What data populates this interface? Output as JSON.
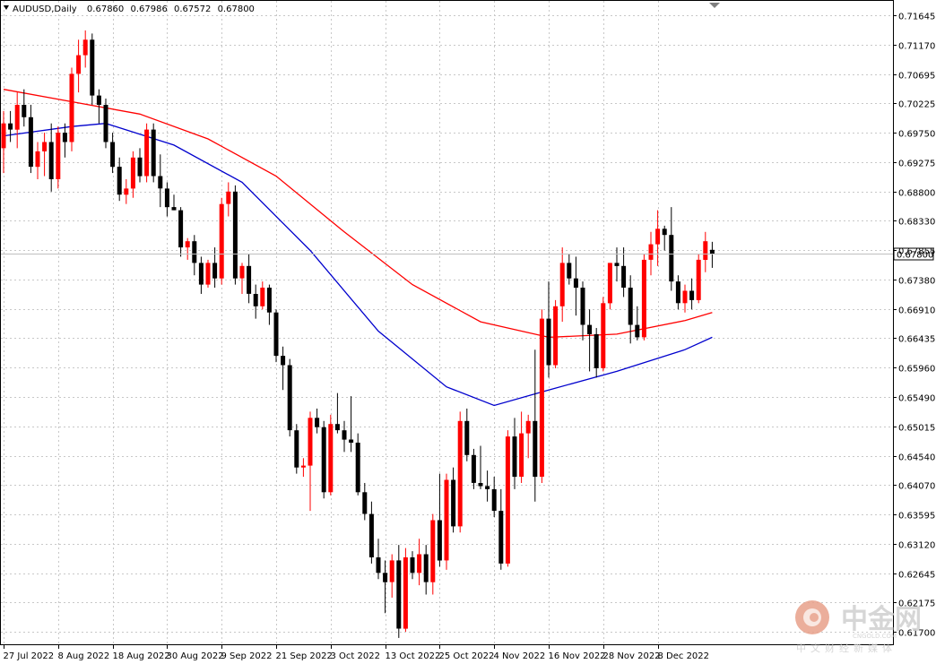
{
  "chart_data": {
    "type": "candlestick",
    "symbol": "AUDUSD",
    "timeframe": "Daily",
    "ohlc_header": [
      "0.67860",
      "0.67986",
      "0.67572",
      "0.67800"
    ],
    "current_price": "0.67800",
    "ylim": [
      0.6145,
      0.7195
    ],
    "y_ticks": [
      "0.71645",
      "0.71170",
      "0.70695",
      "0.70225",
      "0.69750",
      "0.69275",
      "0.68800",
      "0.68330",
      "0.67855",
      "0.67380",
      "0.66910",
      "0.66435",
      "0.65960",
      "0.65490",
      "0.65015",
      "0.64540",
      "0.64070",
      "0.63595",
      "0.63120",
      "0.62645",
      "0.62175",
      "0.61700"
    ],
    "x_ticks": [
      {
        "label": "27 Jul 2022",
        "index": 0
      },
      {
        "label": "8 Aug 2022",
        "index": 8
      },
      {
        "label": "18 Aug 2022",
        "index": 16
      },
      {
        "label": "30 Aug 2022",
        "index": 24
      },
      {
        "label": "9 Sep 2022",
        "index": 32
      },
      {
        "label": "21 Sep 2022",
        "index": 40
      },
      {
        "label": "3 Oct 2022",
        "index": 48
      },
      {
        "label": "13 Oct 2022",
        "index": 56
      },
      {
        "label": "25 Oct 2022",
        "index": 64
      },
      {
        "label": "4 Nov 2022",
        "index": 72
      },
      {
        "label": "16 Nov 2022",
        "index": 80
      },
      {
        "label": "28 Nov 2022",
        "index": 88
      },
      {
        "label": "8 Dec 2022",
        "index": 96
      }
    ],
    "candles": [
      [
        0.695,
        0.701,
        0.691,
        0.699
      ],
      [
        0.699,
        0.701,
        0.696,
        0.698
      ],
      [
        0.698,
        0.704,
        0.695,
        0.702
      ],
      [
        0.702,
        0.7045,
        0.6985,
        0.7
      ],
      [
        0.7,
        0.702,
        0.691,
        0.692
      ],
      [
        0.692,
        0.696,
        0.69,
        0.6945
      ],
      [
        0.6945,
        0.6975,
        0.6905,
        0.696
      ],
      [
        0.696,
        0.699,
        0.688,
        0.69
      ],
      [
        0.69,
        0.6985,
        0.6885,
        0.6975
      ],
      [
        0.6975,
        0.699,
        0.6935,
        0.696
      ],
      [
        0.696,
        0.708,
        0.6945,
        0.707
      ],
      [
        0.707,
        0.7125,
        0.704,
        0.71
      ],
      [
        0.71,
        0.714,
        0.708,
        0.7125
      ],
      [
        0.7125,
        0.7135,
        0.702,
        0.7035
      ],
      [
        0.7035,
        0.7045,
        0.699,
        0.702
      ],
      [
        0.702,
        0.703,
        0.695,
        0.696
      ],
      [
        0.696,
        0.6975,
        0.691,
        0.692
      ],
      [
        0.692,
        0.6935,
        0.6865,
        0.6875
      ],
      [
        0.6875,
        0.69,
        0.686,
        0.6885
      ],
      [
        0.6885,
        0.6945,
        0.687,
        0.6935
      ],
      [
        0.6935,
        0.695,
        0.6895,
        0.6905
      ],
      [
        0.6905,
        0.699,
        0.6895,
        0.698
      ],
      [
        0.698,
        0.699,
        0.6895,
        0.6905
      ],
      [
        0.6905,
        0.694,
        0.6855,
        0.6885
      ],
      [
        0.6885,
        0.6895,
        0.684,
        0.6855
      ],
      [
        0.6855,
        0.6875,
        0.685,
        0.685
      ],
      [
        0.685,
        0.6855,
        0.6775,
        0.679
      ],
      [
        0.679,
        0.6805,
        0.677,
        0.68
      ],
      [
        0.68,
        0.681,
        0.6745,
        0.6765
      ],
      [
        0.6765,
        0.6775,
        0.6715,
        0.673
      ],
      [
        0.673,
        0.677,
        0.6725,
        0.6765
      ],
      [
        0.6765,
        0.679,
        0.6725,
        0.674
      ],
      [
        0.674,
        0.687,
        0.673,
        0.686
      ],
      [
        0.686,
        0.6895,
        0.684,
        0.688
      ],
      [
        0.688,
        0.689,
        0.673,
        0.674
      ],
      [
        0.674,
        0.6765,
        0.6715,
        0.676
      ],
      [
        0.676,
        0.678,
        0.67,
        0.6715
      ],
      [
        0.6715,
        0.673,
        0.6675,
        0.6695
      ],
      [
        0.6695,
        0.6735,
        0.669,
        0.6725
      ],
      [
        0.6725,
        0.673,
        0.6665,
        0.6685
      ],
      [
        0.6685,
        0.669,
        0.6605,
        0.6615
      ],
      [
        0.6615,
        0.663,
        0.656,
        0.66
      ],
      [
        0.66,
        0.661,
        0.6485,
        0.6495
      ],
      [
        0.6495,
        0.6505,
        0.6425,
        0.6435
      ],
      [
        0.6435,
        0.645,
        0.642,
        0.6438
      ],
      [
        0.6438,
        0.6525,
        0.6365,
        0.6515
      ],
      [
        0.6515,
        0.653,
        0.649,
        0.65
      ],
      [
        0.65,
        0.651,
        0.6385,
        0.6395
      ],
      [
        0.6395,
        0.652,
        0.639,
        0.6505
      ],
      [
        0.6505,
        0.6555,
        0.649,
        0.6495
      ],
      [
        0.6495,
        0.651,
        0.646,
        0.648
      ],
      [
        0.648,
        0.655,
        0.646,
        0.6475
      ],
      [
        0.6475,
        0.649,
        0.639,
        0.6395
      ],
      [
        0.6395,
        0.641,
        0.635,
        0.636
      ],
      [
        0.636,
        0.638,
        0.628,
        0.629
      ],
      [
        0.629,
        0.632,
        0.6255,
        0.6265
      ],
      [
        0.6265,
        0.6285,
        0.62,
        0.625
      ],
      [
        0.625,
        0.6295,
        0.6225,
        0.6285
      ],
      [
        0.6285,
        0.631,
        0.616,
        0.6175
      ],
      [
        0.6175,
        0.6305,
        0.617,
        0.629
      ],
      [
        0.629,
        0.63,
        0.6255,
        0.6265
      ],
      [
        0.6265,
        0.632,
        0.6245,
        0.6295
      ],
      [
        0.6295,
        0.631,
        0.623,
        0.625
      ],
      [
        0.625,
        0.636,
        0.623,
        0.635
      ],
      [
        0.635,
        0.6425,
        0.6275,
        0.6285
      ],
      [
        0.6285,
        0.6425,
        0.627,
        0.6415
      ],
      [
        0.6415,
        0.6435,
        0.633,
        0.634
      ],
      [
        0.634,
        0.6525,
        0.633,
        0.651
      ],
      [
        0.651,
        0.653,
        0.6445,
        0.6455
      ],
      [
        0.6455,
        0.6465,
        0.64,
        0.641
      ],
      [
        0.641,
        0.647,
        0.64,
        0.6405
      ],
      [
        0.6405,
        0.643,
        0.638,
        0.64
      ],
      [
        0.64,
        0.642,
        0.6355,
        0.6365
      ],
      [
        0.6365,
        0.64,
        0.627,
        0.628
      ],
      [
        0.628,
        0.6495,
        0.6275,
        0.6485
      ],
      [
        0.6485,
        0.6515,
        0.64,
        0.642
      ],
      [
        0.642,
        0.6525,
        0.641,
        0.649
      ],
      [
        0.649,
        0.652,
        0.645,
        0.651
      ],
      [
        0.651,
        0.6625,
        0.638,
        0.642
      ],
      [
        0.642,
        0.669,
        0.641,
        0.6675
      ],
      [
        0.6675,
        0.6735,
        0.658,
        0.66
      ],
      [
        0.66,
        0.6705,
        0.6595,
        0.6695
      ],
      [
        0.6695,
        0.679,
        0.667,
        0.6765
      ],
      [
        0.6765,
        0.678,
        0.673,
        0.674
      ],
      [
        0.674,
        0.6775,
        0.668,
        0.6725
      ],
      [
        0.6725,
        0.6735,
        0.664,
        0.6665
      ],
      [
        0.6665,
        0.669,
        0.659,
        0.665
      ],
      [
        0.665,
        0.666,
        0.658,
        0.6595
      ],
      [
        0.6595,
        0.671,
        0.659,
        0.67
      ],
      [
        0.67,
        0.6765,
        0.669,
        0.6765
      ],
      [
        0.6765,
        0.679,
        0.6735,
        0.676
      ],
      [
        0.676,
        0.679,
        0.671,
        0.6725
      ],
      [
        0.6725,
        0.6745,
        0.6635,
        0.6665
      ],
      [
        0.6665,
        0.6695,
        0.664,
        0.6645
      ],
      [
        0.6645,
        0.678,
        0.664,
        0.677
      ],
      [
        0.677,
        0.6815,
        0.6745,
        0.6795
      ],
      [
        0.6795,
        0.685,
        0.676,
        0.682
      ],
      [
        0.682,
        0.6825,
        0.6785,
        0.681
      ],
      [
        0.681,
        0.6855,
        0.672,
        0.6735
      ],
      [
        0.6735,
        0.6745,
        0.669,
        0.67
      ],
      [
        0.67,
        0.673,
        0.6685,
        0.672
      ],
      [
        0.672,
        0.674,
        0.669,
        0.6705
      ],
      [
        0.6705,
        0.678,
        0.67,
        0.677
      ],
      [
        0.677,
        0.6815,
        0.675,
        0.68
      ],
      [
        0.6786,
        0.6799,
        0.6757,
        0.678
      ]
    ],
    "ma_red": [
      [
        0,
        0.7045
      ],
      [
        10,
        0.7025
      ],
      [
        20,
        0.7005
      ],
      [
        30,
        0.6965
      ],
      [
        40,
        0.6905
      ],
      [
        50,
        0.6815
      ],
      [
        60,
        0.673
      ],
      [
        70,
        0.667
      ],
      [
        80,
        0.6645
      ],
      [
        90,
        0.665
      ],
      [
        100,
        0.6672
      ],
      [
        104,
        0.6685
      ]
    ],
    "ma_blue": [
      [
        0,
        0.697
      ],
      [
        10,
        0.6985
      ],
      [
        15,
        0.699
      ],
      [
        25,
        0.6955
      ],
      [
        35,
        0.6895
      ],
      [
        45,
        0.6785
      ],
      [
        55,
        0.6655
      ],
      [
        65,
        0.6565
      ],
      [
        72,
        0.6535
      ],
      [
        80,
        0.656
      ],
      [
        90,
        0.659
      ],
      [
        100,
        0.6625
      ],
      [
        104,
        0.6645
      ]
    ],
    "colors": {
      "bull": "#ff0000",
      "bear": "#000000",
      "ma_fast": "#ff0000",
      "ma_slow": "#0000cd",
      "grid": "#c8c8c8",
      "price_line": "#c0c0c0"
    },
    "grid": true
  },
  "watermark": {
    "name": "中金网",
    "domain": "CNGOLD.COM",
    "tagline": "中文财经新媒体"
  }
}
